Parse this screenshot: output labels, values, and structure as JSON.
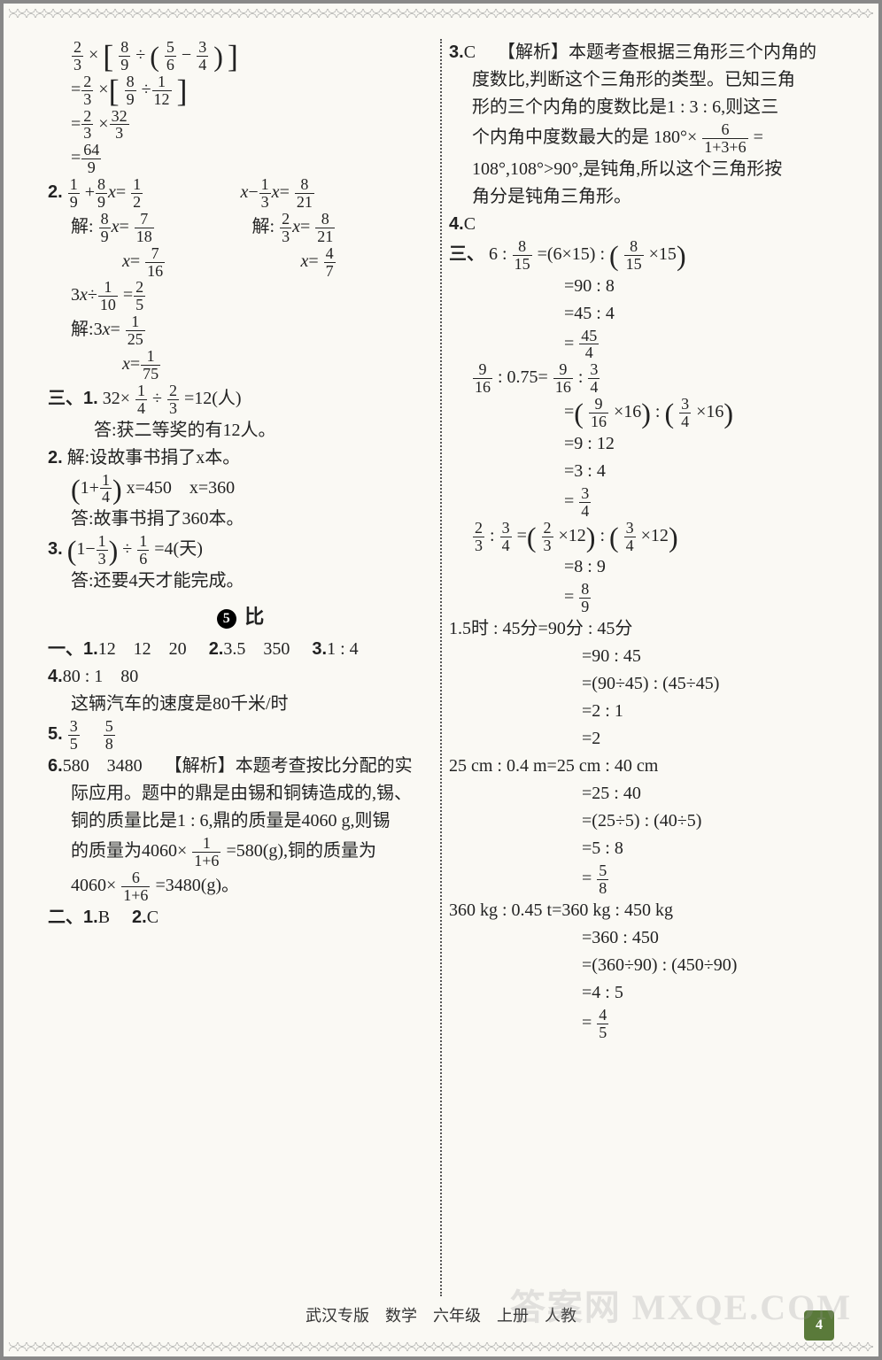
{
  "page": {
    "footer": "武汉专版　数学　六年级　上册　人教",
    "page_number": "4",
    "watermark": "答案网 MXQE.COM"
  },
  "left": {
    "eq_problem_l1": "×",
    "eq_problem_l2": "÷",
    "sec2_label": "2.",
    "sec2_eq1a_lhs": "+",
    "sec2_eq1a_rhs": "=",
    "sec2_eq1b_lhs": "−",
    "sec2_eq1b_rhs": "=",
    "solve_label": "解:",
    "sec2_eq3_lhs": "3x÷",
    "sec2_eq3_rhs": "=",
    "sec3_label": "三、1.",
    "sec3_1_expr": "32×",
    "sec3_1_mid": "÷",
    "sec3_1_res": "=12(人)",
    "sec3_1_ans": "答:获二等奖的有12人。",
    "sec3_2_label": "2.",
    "sec3_2_setup": "解:设故事书捐了x本。",
    "sec3_2_eq": "x=450　x=360",
    "sec3_2_ans": "答:故事书捐了360本。",
    "sec3_3_label": "3.",
    "sec3_3_expr_mid": "÷",
    "sec3_3_res": "=4(天)",
    "sec3_3_ans": "答:还要4天才能完成。",
    "title_num": "5",
    "title_text": "比",
    "onesec_label": "一、1.",
    "one_1": "12　12　20",
    "one_2_label": "2.",
    "one_2": "3.5　350",
    "one_3_label": "3.",
    "one_3": "1 : 4",
    "one_4_label": "4.",
    "one_4": "80 : 1　80",
    "one_4_note": "这辆汽车的速度是80千米/时",
    "one_5_label": "5.",
    "one_6_label": "6.",
    "one_6_vals": "580　3480",
    "one_6_ana_tag": "【解析】",
    "one_6_ana1": "本题考查按比分配的实",
    "one_6_ana2": "际应用。题中的鼎是由锡和铜铸造成的,锡、",
    "one_6_ana3": "铜的质量比是1 : 6,鼎的质量是4060 g,则锡",
    "one_6_ana4a": "的质量为4060×",
    "one_6_ana4b": "=580(g),铜的质量为",
    "one_6_ana5a": "4060×",
    "one_6_ana5b": "=3480(g)。",
    "twosec_label": "二、1.",
    "two_1": "B",
    "two_2_label": "2.",
    "two_2": "C",
    "fracs": {
      "f2_3n": "2",
      "f2_3d": "3",
      "f8_9n": "8",
      "f8_9d": "9",
      "f5_6n": "5",
      "f5_6d": "6",
      "f3_4n": "3",
      "f3_4d": "4",
      "f1_12n": "1",
      "f1_12d": "12",
      "f32_3n": "32",
      "f32_3d": "3",
      "f64_9n": "64",
      "f64_9d": "9",
      "f1_9n": "1",
      "f1_9d": "9",
      "f1_2n": "1",
      "f1_2d": "2",
      "f1_3n": "1",
      "f1_3d": "3",
      "f8_21n": "8",
      "f8_21d": "21",
      "f7_18n": "7",
      "f7_18d": "18",
      "f7_16n": "7",
      "f7_16d": "16",
      "f4_7n": "4",
      "f4_7d": "7",
      "f1_10n": "1",
      "f1_10d": "10",
      "f2_5n": "2",
      "f2_5d": "5",
      "f1_25n": "1",
      "f1_25d": "25",
      "f1_75n": "1",
      "f1_75d": "75",
      "f1_4n": "1",
      "f1_4d": "4",
      "f1_6n": "1",
      "f1_6d": "6",
      "f3_5n": "3",
      "f3_5d": "5",
      "f5_8n": "5",
      "f5_8d": "8",
      "f1_1p6n": "1",
      "f1_1p6d": "1+6",
      "f6_1p6n": "6",
      "f6_1p6d": "1+6"
    }
  },
  "right": {
    "q3_label": "3.",
    "q3_ans": "C",
    "q3_tag": "【解析】",
    "q3_l1": "本题考查根据三角形三个内角的",
    "q3_l2": "度数比,判断这个三角形的类型。已知三角",
    "q3_l3": "形的三个内角的度数比是1 : 3 : 6,则这三",
    "q3_l4a": "个内角中度数最大的是 180°×",
    "q3_l4b": "=",
    "q3_l5": "108°,108°>90°,是钝角,所以这个三角形按",
    "q3_l6": "角分是钝角三角形。",
    "q4_label": "4.",
    "q4_ans": "C",
    "sec3_label": "三、",
    "w1_l1a": "6 : ",
    "w1_l1b": "=(6×15) : ",
    "w1_l1c": "×15",
    "w1_l2": "=90 : 8",
    "w1_l3": "=45 : 4",
    "w1_l4": "=",
    "w2_l1a": " : 0.75=",
    "w2_l1b": " : ",
    "w2_l2a": "=",
    "w2_l2b": "×16",
    "w2_l2c": " : ",
    "w2_l2d": "×16",
    "w2_l3": "=9 : 12",
    "w2_l4": "=3 : 4",
    "w2_l5": "=",
    "w3_l1a": " : ",
    "w3_l1b": "=",
    "w3_l1c": "×12",
    "w3_l1d": " : ",
    "w3_l1e": "×12",
    "w3_l2": "=8 : 9",
    "w3_l3": "=",
    "w4_l1": "1.5时 : 45分=90分 : 45分",
    "w4_l2": "=90 : 45",
    "w4_l3": "=(90÷45) : (45÷45)",
    "w4_l4": "=2 : 1",
    "w4_l5": "=2",
    "w5_l1": "25 cm : 0.4 m=25 cm : 40 cm",
    "w5_l2": "=25 : 40",
    "w5_l3": "=(25÷5) : (40÷5)",
    "w5_l4": "=5 : 8",
    "w5_l5": "=",
    "w6_l1": "360 kg : 0.45 t=360 kg : 450 kg",
    "w6_l2": "=360 : 450",
    "w6_l3": "=(360÷90) : (450÷90)",
    "w6_l4": "=4 : 5",
    "w6_l5": "=",
    "fracs": {
      "f6_136n": "6",
      "f6_136d": "1+3+6",
      "f8_15n": "8",
      "f8_15d": "15",
      "f45_4n": "45",
      "f45_4d": "4",
      "f9_16n": "9",
      "f9_16d": "16",
      "f3_4n": "3",
      "f3_4d": "4",
      "f2_3n": "2",
      "f2_3d": "3",
      "f8_9n": "8",
      "f8_9d": "9",
      "f5_8n": "5",
      "f5_8d": "8",
      "f4_5n": "4",
      "f4_5d": "5"
    }
  },
  "colors": {
    "text": "#222222",
    "background": "#faf9f4",
    "accent_green": "#5a7a3a",
    "divider": "#555555"
  }
}
